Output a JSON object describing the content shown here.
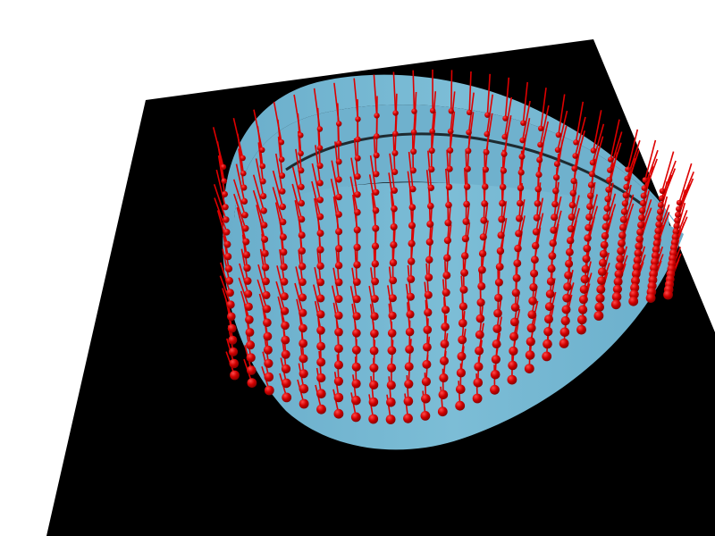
{
  "scene": {
    "background_color": "#ffffff",
    "ground_plane_color": "#000000",
    "surface_color": "#78b8d2",
    "surface_shade_color": "#5e9fbb",
    "vector_color": "#dd0000",
    "marker_color": "#cc0000",
    "marker_highlight_color": "#ff3a3a"
  }
}
